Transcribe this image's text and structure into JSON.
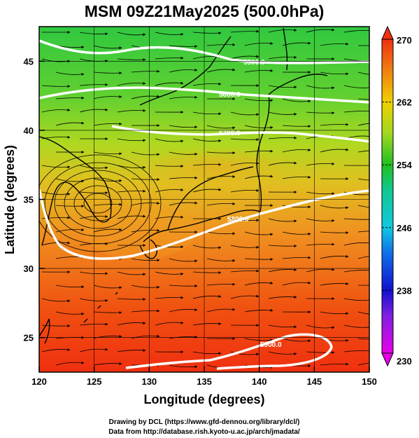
{
  "title": "MSM 09Z21May2025 (500.0hPa)",
  "x_axis": {
    "label": "Longitude (degrees)",
    "range": [
      120,
      150
    ],
    "ticks": [
      "120",
      "125",
      "130",
      "135",
      "140",
      "145",
      "150"
    ]
  },
  "y_axis": {
    "label": "Latitude  (degrees)",
    "range": [
      22.5,
      47.5
    ],
    "ticks": [
      "25",
      "30",
      "35",
      "40",
      "45"
    ]
  },
  "colorbar": {
    "range": [
      230,
      270
    ],
    "ticks": [
      "230",
      "238",
      "246",
      "254",
      "262",
      "270"
    ],
    "colors": [
      "#e800e8",
      "#1010d0",
      "#10c8e0",
      "#20c020",
      "#f0d000",
      "#f03010"
    ]
  },
  "contours": [
    {
      "label": "5700.0",
      "color": "#ffffff"
    },
    {
      "label": "5800.0",
      "color": "#ffffff"
    },
    {
      "label": "5500.0",
      "color": "#ffffff"
    },
    {
      "label": "5600.0",
      "color": "#ffffff"
    },
    {
      "label": "5900.0",
      "color": "#ffffff"
    }
  ],
  "credits": [
    "Drawing by DCL (https://www.gfd-dennou.org/library/dcl/)",
    "Data from http://database.rish.kyoto-u.ac.jp/arch/jmadata/"
  ]
}
